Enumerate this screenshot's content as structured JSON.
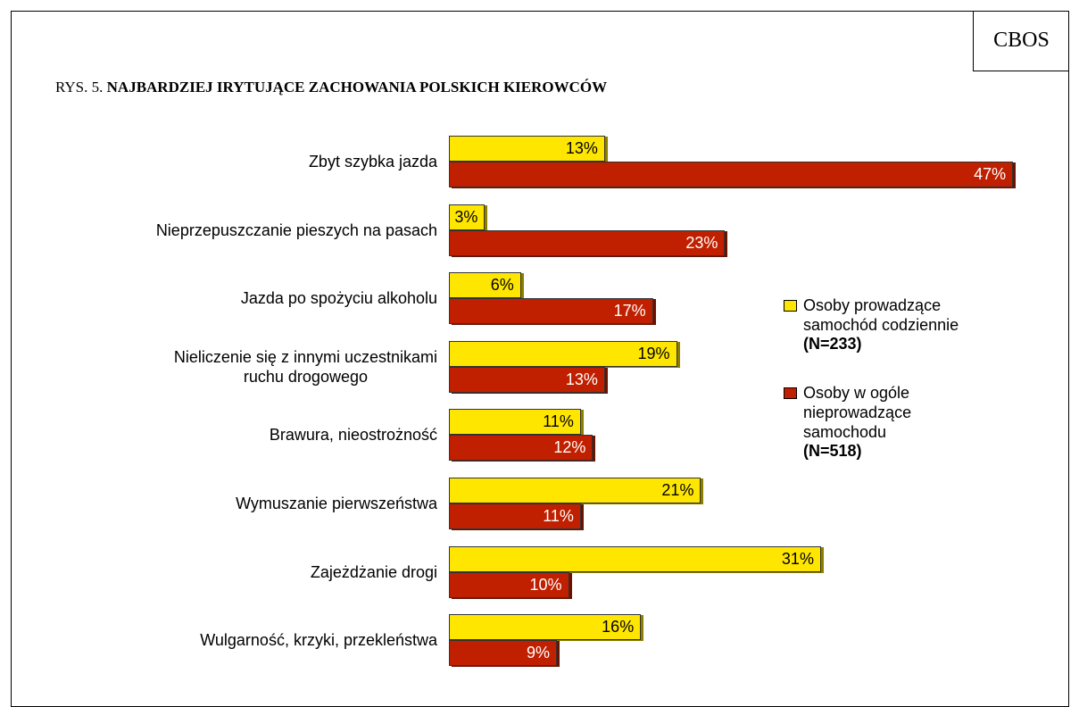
{
  "brand": "CBOS",
  "chart_data": {
    "type": "bar",
    "orientation": "horizontal",
    "title_prefix": "RYS. 5.",
    "title": "NAJBARDZIEJ IRYTUJĄCE ZACHOWANIA POLSKICH KIEROWCÓW",
    "categories": [
      "Zbyt szybka jazda",
      "Nieprzepuszczanie pieszych na pasach",
      "Jazda po spożyciu alkoholu",
      "Nieliczenie się z innymi uczestnikami\nruchu drogowego",
      "Brawura, nieostrożność",
      "Wymuszanie pierwszeństwa",
      "Zajeżdżanie drogi",
      "Wulgarność, krzyki, przekleństwa"
    ],
    "series": [
      {
        "name": "Osoby prowadzące\nsamochód codziennie",
        "n_label": "(N=233)",
        "color": "#ffe600",
        "label_color": "#000000",
        "values": [
          13,
          3,
          6,
          19,
          11,
          21,
          31,
          16
        ],
        "value_labels": [
          "13%",
          "3%",
          "6%",
          "19%",
          "11%",
          "21%",
          "31%",
          "16%"
        ]
      },
      {
        "name": "Osoby w ogóle\nnieprowadzące\nsamochodu",
        "n_label": "(N=518)",
        "color": "#c02000",
        "label_color": "#ffffff",
        "values": [
          47,
          23,
          17,
          13,
          12,
          11,
          10,
          9
        ],
        "value_labels": [
          "47%",
          "23%",
          "17%",
          "13%",
          "12%",
          "11%",
          "10%",
          "9%"
        ]
      }
    ]
  }
}
